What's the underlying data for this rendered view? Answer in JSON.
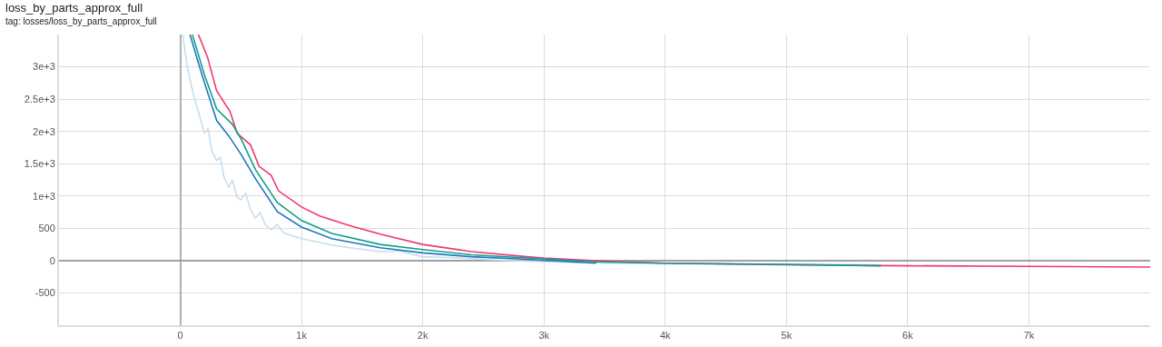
{
  "chart_data": {
    "type": "line",
    "title": "loss_by_parts_approx_full",
    "subtitle": "tag: losses/loss_by_parts_approx_full",
    "xlim": [
      -1000,
      8000
    ],
    "xticks": [
      {
        "value": 0,
        "label": "0"
      },
      {
        "value": 1000,
        "label": "1k"
      },
      {
        "value": 2000,
        "label": "2k"
      },
      {
        "value": 3000,
        "label": "3k"
      },
      {
        "value": 4000,
        "label": "4k"
      },
      {
        "value": 5000,
        "label": "5k"
      },
      {
        "value": 6000,
        "label": "6k"
      },
      {
        "value": 7000,
        "label": "7k"
      }
    ],
    "ylim": [
      -1000,
      3500
    ],
    "yticks": [
      {
        "value": -1000,
        "label": null
      },
      {
        "value": -500,
        "label": "-500"
      },
      0,
      500,
      {
        "value": 1000,
        "label": "1e+3"
      },
      {
        "value": 1500,
        "label": "1.5e+3"
      },
      {
        "value": 2000,
        "label": "2e+3"
      },
      {
        "value": 2500,
        "label": "2.5e+3"
      },
      {
        "value": 3000,
        "label": "3e+3"
      }
    ],
    "grid": true,
    "line_style": "solid",
    "marker": "none",
    "series": [
      {
        "color": "#c6dfee",
        "x": [
          20,
          50,
          80,
          120,
          150,
          200,
          230,
          260,
          300,
          330,
          360,
          400,
          430,
          470,
          500,
          540,
          580,
          620,
          660,
          700,
          750,
          800,
          850,
          900,
          1000,
          1100,
          1250,
          1400,
          1650,
          1800,
          2000,
          2300,
          2600,
          3000,
          3500,
          4000,
          4500,
          5000,
          5400,
          5780
        ],
        "values": [
          3500,
          3100,
          2800,
          2490,
          2300,
          1970,
          2050,
          1700,
          1550,
          1600,
          1300,
          1130,
          1250,
          980,
          940,
          1050,
          780,
          660,
          740,
          560,
          480,
          560,
          430,
          400,
          340,
          300,
          240,
          200,
          140,
          150,
          60,
          40,
          10,
          -20,
          -40,
          -50,
          -50,
          -60,
          -60,
          -70
        ]
      },
      {
        "color": "#f0386e",
        "x": [
          150,
          225,
          300,
          410,
          470,
          580,
          650,
          750,
          810,
          1000,
          1150,
          1400,
          1650,
          2000,
          2400,
          2860,
          3000,
          3500,
          4000,
          5000,
          6000,
          7000,
          8000
        ],
        "values": [
          3500,
          3150,
          2630,
          2310,
          1970,
          1790,
          1460,
          1320,
          1080,
          830,
          690,
          540,
          410,
          250,
          140,
          60,
          40,
          -10,
          -40,
          -65,
          -80,
          -90,
          -100
        ]
      },
      {
        "color": "#12a08a",
        "x": [
          100,
          200,
          300,
          430,
          500,
          620,
          800,
          1000,
          1250,
          1650,
          2000,
          2400,
          2860,
          3430,
          4000,
          5000,
          5780
        ],
        "values": [
          3500,
          2870,
          2350,
          2110,
          1890,
          1410,
          900,
          620,
          420,
          250,
          170,
          90,
          40,
          -20,
          -40,
          -60,
          -80
        ]
      },
      {
        "color": "#1f78c1",
        "x": [
          80,
          180,
          300,
          400,
          500,
          620,
          800,
          1000,
          1250,
          1650,
          2000,
          2400,
          2860,
          3430
        ],
        "values": [
          3500,
          2870,
          2170,
          1930,
          1650,
          1270,
          760,
          520,
          340,
          200,
          120,
          60,
          20,
          -40
        ]
      }
    ]
  }
}
